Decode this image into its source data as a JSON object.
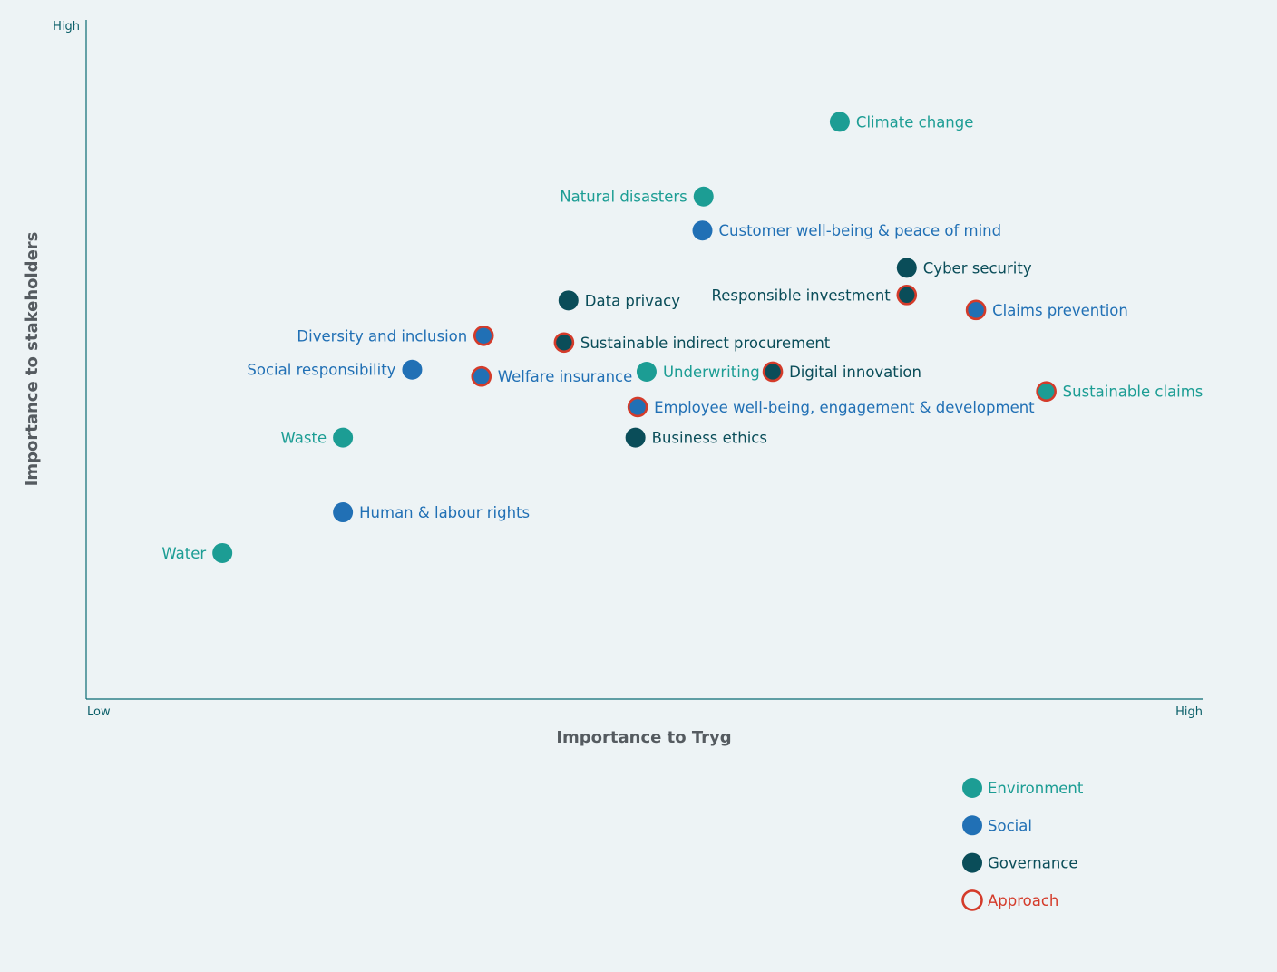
{
  "colors": {
    "environment": "#1c9d94",
    "social": "#2170b5",
    "governance": "#0a4d59",
    "approach": "#d43b2a"
  },
  "chart_data": {
    "type": "scatter",
    "xlabel": "Importance to Tryg",
    "ylabel": "Importance to stakeholders",
    "x_ticks": {
      "low": "Low",
      "high": "High"
    },
    "y_ticks": {
      "high": "High"
    },
    "xlim": [
      0,
      100
    ],
    "ylim": [
      0,
      100
    ],
    "grid": false,
    "legend_position": "bottom-right",
    "legend": [
      {
        "key": "environment",
        "label": "Environment",
        "style": "filled"
      },
      {
        "key": "social",
        "label": "Social",
        "style": "filled"
      },
      {
        "key": "governance",
        "label": "Governance",
        "style": "filled"
      },
      {
        "key": "approach",
        "label": "Approach",
        "style": "ring"
      }
    ],
    "points": [
      {
        "label": "Climate change",
        "category": "environment",
        "approach": false,
        "x": 67.5,
        "y": 85,
        "label_side": "right"
      },
      {
        "label": "Natural disasters",
        "category": "environment",
        "approach": false,
        "x": 55.3,
        "y": 74,
        "label_side": "left"
      },
      {
        "label": "Customer well-being & peace of mind",
        "category": "social",
        "approach": false,
        "x": 55.2,
        "y": 69,
        "label_side": "right"
      },
      {
        "label": "Cyber security",
        "category": "governance",
        "approach": false,
        "x": 73.5,
        "y": 63.5,
        "label_side": "right"
      },
      {
        "label": "Responsible investment",
        "category": "governance",
        "approach": true,
        "x": 73.5,
        "y": 59.5,
        "label_side": "left"
      },
      {
        "label": "Claims prevention",
        "category": "social",
        "approach": true,
        "x": 79.7,
        "y": 57.3,
        "label_side": "right"
      },
      {
        "label": "Data privacy",
        "category": "governance",
        "approach": false,
        "x": 43.2,
        "y": 58.7,
        "label_side": "right"
      },
      {
        "label": "Diversity and inclusion",
        "category": "social",
        "approach": true,
        "x": 35.6,
        "y": 53.5,
        "label_side": "left"
      },
      {
        "label": "Sustainable indirect procurement",
        "category": "governance",
        "approach": true,
        "x": 42.8,
        "y": 52.5,
        "label_side": "right"
      },
      {
        "label": "Social responsibility",
        "category": "social",
        "approach": false,
        "x": 29.2,
        "y": 48.5,
        "label_side": "left"
      },
      {
        "label": "Welfare insurance",
        "category": "social",
        "approach": true,
        "x": 35.4,
        "y": 47.5,
        "label_side": "right"
      },
      {
        "label": "Underwriting",
        "category": "environment",
        "approach": false,
        "x": 50.2,
        "y": 48.2,
        "label_side": "right"
      },
      {
        "label": "Digital innovation",
        "category": "governance",
        "approach": true,
        "x": 61.5,
        "y": 48.2,
        "label_side": "right"
      },
      {
        "label": "Sustainable claims",
        "category": "environment",
        "approach": true,
        "x": 86,
        "y": 45.3,
        "label_side": "right"
      },
      {
        "label": "Employee well-being, engagement & development",
        "category": "social",
        "approach": true,
        "x": 49.4,
        "y": 43,
        "label_side": "right"
      },
      {
        "label": "Waste",
        "category": "environment",
        "approach": false,
        "x": 23,
        "y": 38.5,
        "label_side": "left"
      },
      {
        "label": "Business ethics",
        "category": "governance",
        "approach": false,
        "x": 49.2,
        "y": 38.5,
        "label_side": "right"
      },
      {
        "label": "Human & labour rights",
        "category": "social",
        "approach": false,
        "x": 23,
        "y": 27.5,
        "label_side": "right"
      },
      {
        "label": "Water",
        "category": "environment",
        "approach": false,
        "x": 12.2,
        "y": 21.5,
        "label_side": "left"
      }
    ]
  }
}
